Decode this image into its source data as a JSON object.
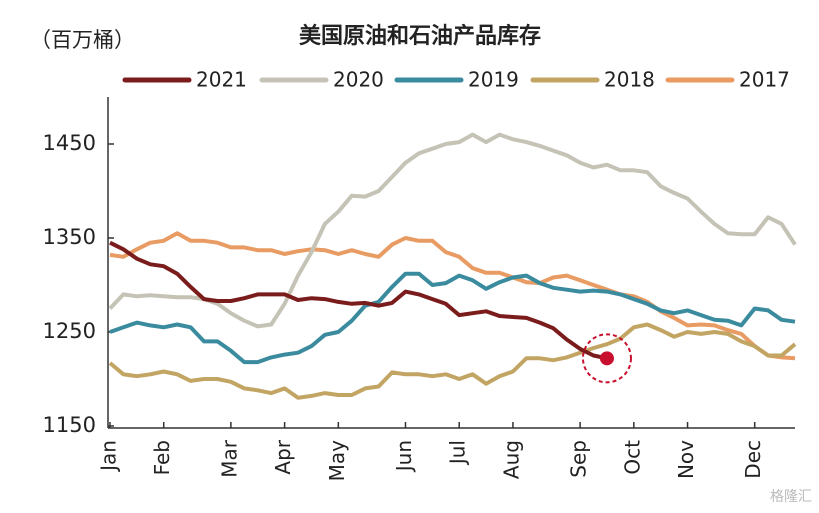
{
  "chart_data": {
    "type": "line",
    "title": "美国原油和石油产品库存",
    "y_label": "（百万桶）",
    "watermark": "格隆汇",
    "categories": [
      "Jan",
      null,
      null,
      null,
      "Feb",
      null,
      null,
      null,
      null,
      "Mar",
      null,
      null,
      null,
      "Apr",
      null,
      null,
      null,
      "May",
      null,
      null,
      null,
      null,
      "Jun",
      null,
      null,
      null,
      "Jul",
      null,
      null,
      null,
      "Aug",
      null,
      null,
      null,
      null,
      "Sep",
      null,
      null,
      null,
      "Oct",
      null,
      null,
      null,
      "Nov",
      null,
      null,
      null,
      null,
      "Dec",
      null,
      null,
      null
    ],
    "ylim": [
      1150,
      1500
    ],
    "yticks": [
      1150,
      1250,
      1350,
      1450
    ],
    "legend": "top",
    "series": [
      {
        "name": "2021",
        "color": "#7b1c1c",
        "values": [
          1345,
          1338,
          1328,
          1322,
          1320,
          1312,
          1298,
          1285,
          1283,
          1283,
          1286,
          1290,
          1290,
          1290,
          1284,
          1286,
          1285,
          1282,
          1280,
          1281,
          1278,
          1281,
          1293,
          1290,
          1285,
          1280,
          1268,
          1270,
          1272,
          1267,
          1266,
          1265,
          1260,
          1254,
          1242,
          1232,
          1225,
          1222,
          null,
          null,
          null,
          null,
          null,
          null,
          null,
          null,
          null,
          null,
          null,
          null,
          null,
          null
        ]
      },
      {
        "name": "2020",
        "color": "#c5c3b6",
        "values": [
          1275,
          1290,
          1288,
          1289,
          1288,
          1287,
          1287,
          1285,
          1280,
          1270,
          1262,
          1256,
          1258,
          1280,
          1310,
          1335,
          1365,
          1378,
          1395,
          1394,
          1400,
          1415,
          1430,
          1440,
          1445,
          1450,
          1452,
          1460,
          1452,
          1460,
          1455,
          1452,
          1448,
          1443,
          1438,
          1430,
          1425,
          1428,
          1422,
          1422,
          1420,
          1405,
          1398,
          1392,
          1378,
          1365,
          1355,
          1354,
          1354,
          1372,
          1365,
          1343
        ]
      },
      {
        "name": "2019",
        "color": "#3b8b9f",
        "values": [
          1250,
          1255,
          1260,
          1257,
          1255,
          1258,
          1255,
          1240,
          1240,
          1230,
          1218,
          1218,
          1223,
          1226,
          1228,
          1235,
          1247,
          1250,
          1262,
          1278,
          1282,
          1298,
          1312,
          1312,
          1300,
          1302,
          1310,
          1305,
          1296,
          1303,
          1308,
          1310,
          1302,
          1297,
          1295,
          1293,
          1294,
          1293,
          1290,
          1285,
          1280,
          1273,
          1270,
          1273,
          1268,
          1263,
          1262,
          1257,
          1275,
          1273,
          1263,
          1261
        ]
      },
      {
        "name": "2018",
        "color": "#c2a463",
        "values": [
          1217,
          1205,
          1203,
          1205,
          1208,
          1205,
          1198,
          1200,
          1200,
          1197,
          1190,
          1188,
          1185,
          1190,
          1180,
          1182,
          1185,
          1183,
          1183,
          1190,
          1192,
          1207,
          1205,
          1205,
          1203,
          1205,
          1200,
          1205,
          1195,
          1203,
          1208,
          1222,
          1222,
          1220,
          1223,
          1228,
          1233,
          1237,
          1243,
          1255,
          1258,
          1252,
          1245,
          1250,
          1248,
          1250,
          1248,
          1240,
          1235,
          1225,
          1225,
          1237
        ]
      },
      {
        "name": "2017",
        "color": "#e89b62",
        "values": [
          1332,
          1330,
          1338,
          1345,
          1347,
          1355,
          1347,
          1347,
          1345,
          1340,
          1340,
          1337,
          1337,
          1333,
          1336,
          1338,
          1337,
          1333,
          1337,
          1333,
          1330,
          1343,
          1350,
          1347,
          1347,
          1335,
          1330,
          1318,
          1313,
          1313,
          1308,
          1303,
          1302,
          1308,
          1310,
          1305,
          1300,
          1295,
          1290,
          1288,
          1282,
          1272,
          1265,
          1257,
          1258,
          1257,
          1252,
          1248,
          1235,
          1225,
          1223,
          1222
        ]
      }
    ]
  }
}
